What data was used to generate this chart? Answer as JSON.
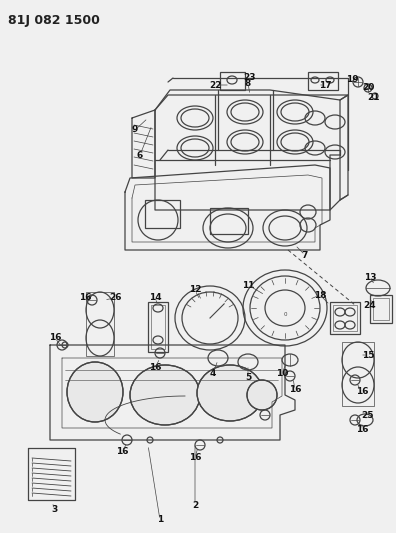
{
  "title": "81J 082 1500",
  "bg_color": "#f0f0f0",
  "title_color": "#222222",
  "line_color": "#444444",
  "label_color": "#111111",
  "title_fontsize": 9,
  "label_fontsize": 6.5,
  "figsize": [
    3.96,
    5.33
  ],
  "dpi": 100
}
